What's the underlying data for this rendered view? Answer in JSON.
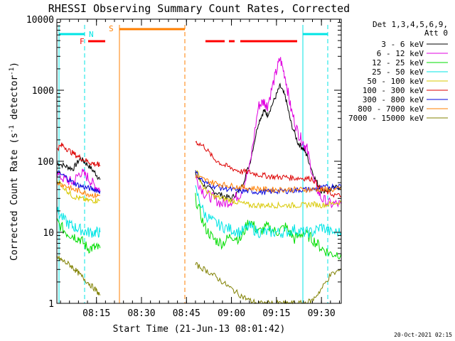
{
  "chart_data": {
    "type": "line",
    "title": "RHESSI Observing Summary Count Rates, Corrected",
    "xlabel": "Start Time (21-Jun-13 08:01:42)",
    "ylabel": "Corrected Count Rate (s",
    "ylabel_sup": "-1",
    "ylabel_end": " detector",
    "ylabel_sup2": "-1",
    "ylabel_close": ")",
    "y_scale": "log",
    "ylim": [
      1,
      10000
    ],
    "xlim_minutes": [
      8.03,
      9.61
    ],
    "x_ticks": [
      {
        "t": 8.25,
        "label": "08:15"
      },
      {
        "t": 8.5,
        "label": "08:30"
      },
      {
        "t": 8.75,
        "label": "08:45"
      },
      {
        "t": 9.0,
        "label": "09:00"
      },
      {
        "t": 9.25,
        "label": "09:15"
      },
      {
        "t": 9.5,
        "label": "09:30"
      }
    ],
    "y_ticks": [
      {
        "v": 1,
        "label": "1"
      },
      {
        "v": 10,
        "label": "10"
      },
      {
        "v": 100,
        "label": "100"
      },
      {
        "v": 1000,
        "label": "1000"
      },
      {
        "v": 10000,
        "label": "10000"
      }
    ],
    "legend_header": [
      "Det 1,3,4,5,6,9,",
      "Att 0"
    ],
    "legend_position": "right",
    "series": [
      {
        "name": "3 - 6 keV",
        "color": "#000000",
        "segments": [
          [
            [
              8.03,
              95
            ],
            [
              8.08,
              85
            ],
            [
              8.12,
              78
            ],
            [
              8.16,
              110
            ],
            [
              8.2,
              90
            ],
            [
              8.24,
              70
            ],
            [
              8.27,
              55
            ]
          ],
          [
            [
              8.8,
              65
            ],
            [
              8.85,
              45
            ],
            [
              8.9,
              38
            ],
            [
              8.95,
              33
            ],
            [
              9.0,
              30
            ],
            [
              9.05,
              40
            ],
            [
              9.1,
              90
            ],
            [
              9.15,
              350
            ],
            [
              9.18,
              520
            ],
            [
              9.2,
              450
            ],
            [
              9.24,
              750
            ],
            [
              9.27,
              1150
            ],
            [
              9.3,
              800
            ],
            [
              9.33,
              350
            ],
            [
              9.37,
              180
            ],
            [
              9.4,
              150
            ],
            [
              9.42,
              120
            ],
            [
              9.46,
              60
            ],
            [
              9.5,
              38
            ],
            [
              9.55,
              40
            ],
            [
              9.61,
              45
            ]
          ]
        ]
      },
      {
        "name": "6 - 12 keV",
        "color": "#e000e0",
        "segments": [
          [
            [
              8.03,
              65
            ],
            [
              8.08,
              55
            ],
            [
              8.12,
              50
            ],
            [
              8.16,
              70
            ],
            [
              8.2,
              60
            ],
            [
              8.24,
              45
            ],
            [
              8.27,
              40
            ]
          ],
          [
            [
              8.8,
              60
            ],
            [
              8.85,
              35
            ],
            [
              8.9,
              30
            ],
            [
              8.95,
              25
            ],
            [
              9.0,
              28
            ],
            [
              9.05,
              35
            ],
            [
              9.1,
              80
            ],
            [
              9.15,
              600
            ],
            [
              9.18,
              700
            ],
            [
              9.2,
              600
            ],
            [
              9.24,
              1500
            ],
            [
              9.27,
              2800
            ],
            [
              9.3,
              1500
            ],
            [
              9.33,
              550
            ],
            [
              9.37,
              250
            ],
            [
              9.4,
              180
            ],
            [
              9.42,
              150
            ],
            [
              9.46,
              50
            ],
            [
              9.5,
              30
            ],
            [
              9.55,
              25
            ],
            [
              9.61,
              25
            ]
          ]
        ]
      },
      {
        "name": "12 - 25 keV",
        "color": "#00dd00",
        "segments": [
          [
            [
              8.03,
              14
            ],
            [
              8.08,
              10
            ],
            [
              8.12,
              9
            ],
            [
              8.16,
              8
            ],
            [
              8.2,
              6
            ],
            [
              8.24,
              6
            ],
            [
              8.27,
              6
            ]
          ],
          [
            [
              8.8,
              30
            ],
            [
              8.85,
              12
            ],
            [
              8.9,
              8
            ],
            [
              8.95,
              7
            ],
            [
              9.0,
              9
            ],
            [
              9.05,
              8
            ],
            [
              9.1,
              15
            ],
            [
              9.15,
              10
            ],
            [
              9.2,
              12
            ],
            [
              9.25,
              10
            ],
            [
              9.3,
              12
            ],
            [
              9.35,
              8
            ],
            [
              9.4,
              10
            ],
            [
              9.45,
              8
            ],
            [
              9.5,
              6
            ],
            [
              9.55,
              5
            ],
            [
              9.61,
              5
            ]
          ]
        ]
      },
      {
        "name": "25 - 50 keV",
        "color": "#00e5e5",
        "segments": [
          [
            [
              8.03,
              20
            ],
            [
              8.08,
              14
            ],
            [
              8.12,
              12
            ],
            [
              8.16,
              11
            ],
            [
              8.2,
              10
            ],
            [
              8.24,
              10
            ],
            [
              8.27,
              10
            ]
          ],
          [
            [
              8.8,
              40
            ],
            [
              8.85,
              18
            ],
            [
              8.9,
              14
            ],
            [
              8.95,
              12
            ],
            [
              9.0,
              11
            ],
            [
              9.05,
              10
            ],
            [
              9.1,
              12
            ],
            [
              9.15,
              10
            ],
            [
              9.2,
              10
            ],
            [
              9.25,
              10
            ],
            [
              9.3,
              10
            ],
            [
              9.35,
              11
            ],
            [
              9.4,
              10
            ],
            [
              9.45,
              10
            ],
            [
              9.5,
              12
            ],
            [
              9.55,
              10
            ],
            [
              9.61,
              10
            ]
          ]
        ]
      },
      {
        "name": "50 - 100 keV",
        "color": "#d8c800",
        "segments": [
          [
            [
              8.03,
              55
            ],
            [
              8.08,
              40
            ],
            [
              8.12,
              32
            ],
            [
              8.16,
              30
            ],
            [
              8.2,
              28
            ],
            [
              8.24,
              28
            ],
            [
              8.27,
              28
            ]
          ],
          [
            [
              8.8,
              80
            ],
            [
              8.85,
              40
            ],
            [
              8.9,
              32
            ],
            [
              8.95,
              30
            ],
            [
              9.0,
              28
            ],
            [
              9.05,
              26
            ],
            [
              9.1,
              24
            ],
            [
              9.15,
              24
            ],
            [
              9.2,
              24
            ],
            [
              9.25,
              24
            ],
            [
              9.3,
              24
            ],
            [
              9.35,
              24
            ],
            [
              9.4,
              24
            ],
            [
              9.45,
              25
            ],
            [
              9.5,
              24
            ],
            [
              9.55,
              25
            ],
            [
              9.61,
              27
            ]
          ]
        ]
      },
      {
        "name": "100 - 300 keV",
        "color": "#dd0000",
        "segments": [
          [
            [
              8.03,
              150
            ],
            [
              8.06,
              170
            ],
            [
              8.1,
              140
            ],
            [
              8.14,
              120
            ],
            [
              8.18,
              105
            ],
            [
              8.22,
              95
            ],
            [
              8.25,
              90
            ],
            [
              8.27,
              88
            ]
          ],
          [
            [
              8.8,
              190
            ],
            [
              8.85,
              160
            ],
            [
              8.9,
              110
            ],
            [
              8.95,
              90
            ],
            [
              9.0,
              80
            ],
            [
              9.05,
              72
            ],
            [
              9.1,
              70
            ],
            [
              9.15,
              65
            ],
            [
              9.2,
              62
            ],
            [
              9.25,
              60
            ],
            [
              9.3,
              60
            ],
            [
              9.35,
              58
            ],
            [
              9.4,
              58
            ],
            [
              9.45,
              57
            ],
            [
              9.5,
              40
            ],
            [
              9.55,
              35
            ],
            [
              9.61,
              32
            ]
          ]
        ]
      },
      {
        "name": "300 - 800 keV",
        "color": "#0000dd",
        "segments": [
          [
            [
              8.03,
              70
            ],
            [
              8.08,
              60
            ],
            [
              8.12,
              50
            ],
            [
              8.16,
              45
            ],
            [
              8.2,
              42
            ],
            [
              8.24,
              40
            ],
            [
              8.27,
              38
            ]
          ],
          [
            [
              8.8,
              70
            ],
            [
              8.85,
              50
            ],
            [
              8.9,
              45
            ],
            [
              8.95,
              42
            ],
            [
              9.0,
              40
            ],
            [
              9.05,
              38
            ],
            [
              9.1,
              38
            ],
            [
              9.15,
              37
            ],
            [
              9.2,
              37
            ],
            [
              9.25,
              38
            ],
            [
              9.3,
              38
            ],
            [
              9.35,
              39
            ],
            [
              9.4,
              40
            ],
            [
              9.45,
              40
            ],
            [
              9.5,
              42
            ],
            [
              9.55,
              44
            ],
            [
              9.61,
              45
            ]
          ]
        ]
      },
      {
        "name": "800 - 7000 keV",
        "color": "#ff7f00",
        "segments": [
          [
            [
              8.03,
              50
            ],
            [
              8.08,
              45
            ],
            [
              8.12,
              40
            ],
            [
              8.16,
              38
            ],
            [
              8.2,
              35
            ],
            [
              8.24,
              33
            ],
            [
              8.27,
              33
            ]
          ],
          [
            [
              8.8,
              62
            ],
            [
              8.85,
              55
            ],
            [
              8.9,
              50
            ],
            [
              8.95,
              47
            ],
            [
              9.0,
              45
            ],
            [
              9.05,
              43
            ],
            [
              9.1,
              42
            ],
            [
              9.15,
              41
            ],
            [
              9.2,
              40
            ],
            [
              9.25,
              40
            ],
            [
              9.3,
              40
            ],
            [
              9.35,
              40
            ],
            [
              9.4,
              40
            ],
            [
              9.45,
              40
            ],
            [
              9.5,
              40
            ],
            [
              9.55,
              40
            ],
            [
              9.61,
              40
            ]
          ]
        ]
      },
      {
        "name": "7000 - 15000 keV",
        "color": "#808000",
        "segments": [
          [
            [
              8.03,
              4.5
            ],
            [
              8.06,
              4
            ],
            [
              8.1,
              3.5
            ],
            [
              8.13,
              3
            ],
            [
              8.16,
              2.5
            ],
            [
              8.2,
              2
            ],
            [
              8.24,
              1.6
            ],
            [
              8.27,
              1.3
            ]
          ],
          [
            [
              8.8,
              3.5
            ],
            [
              8.85,
              3
            ],
            [
              8.9,
              2.5
            ],
            [
              8.95,
              2
            ],
            [
              9.0,
              1.6
            ],
            [
              9.05,
              1.3
            ],
            [
              9.1,
              1.1
            ],
            [
              9.15,
              1
            ],
            [
              9.2,
              1
            ],
            [
              9.25,
              1
            ],
            [
              9.3,
              1
            ],
            [
              9.35,
              1
            ],
            [
              9.4,
              1
            ],
            [
              9.45,
              1.1
            ],
            [
              9.5,
              1.6
            ],
            [
              9.55,
              2.5
            ],
            [
              9.61,
              3
            ]
          ]
        ]
      }
    ],
    "flags": {
      "night_color": "#00e5e5",
      "saa_color": "#ff7f00",
      "flare_color": "#ff0000",
      "night_label": "N",
      "saa_label": "S",
      "flare_label": "F"
    }
  },
  "footer_timestamp": "20-Oct-2021 02:15"
}
